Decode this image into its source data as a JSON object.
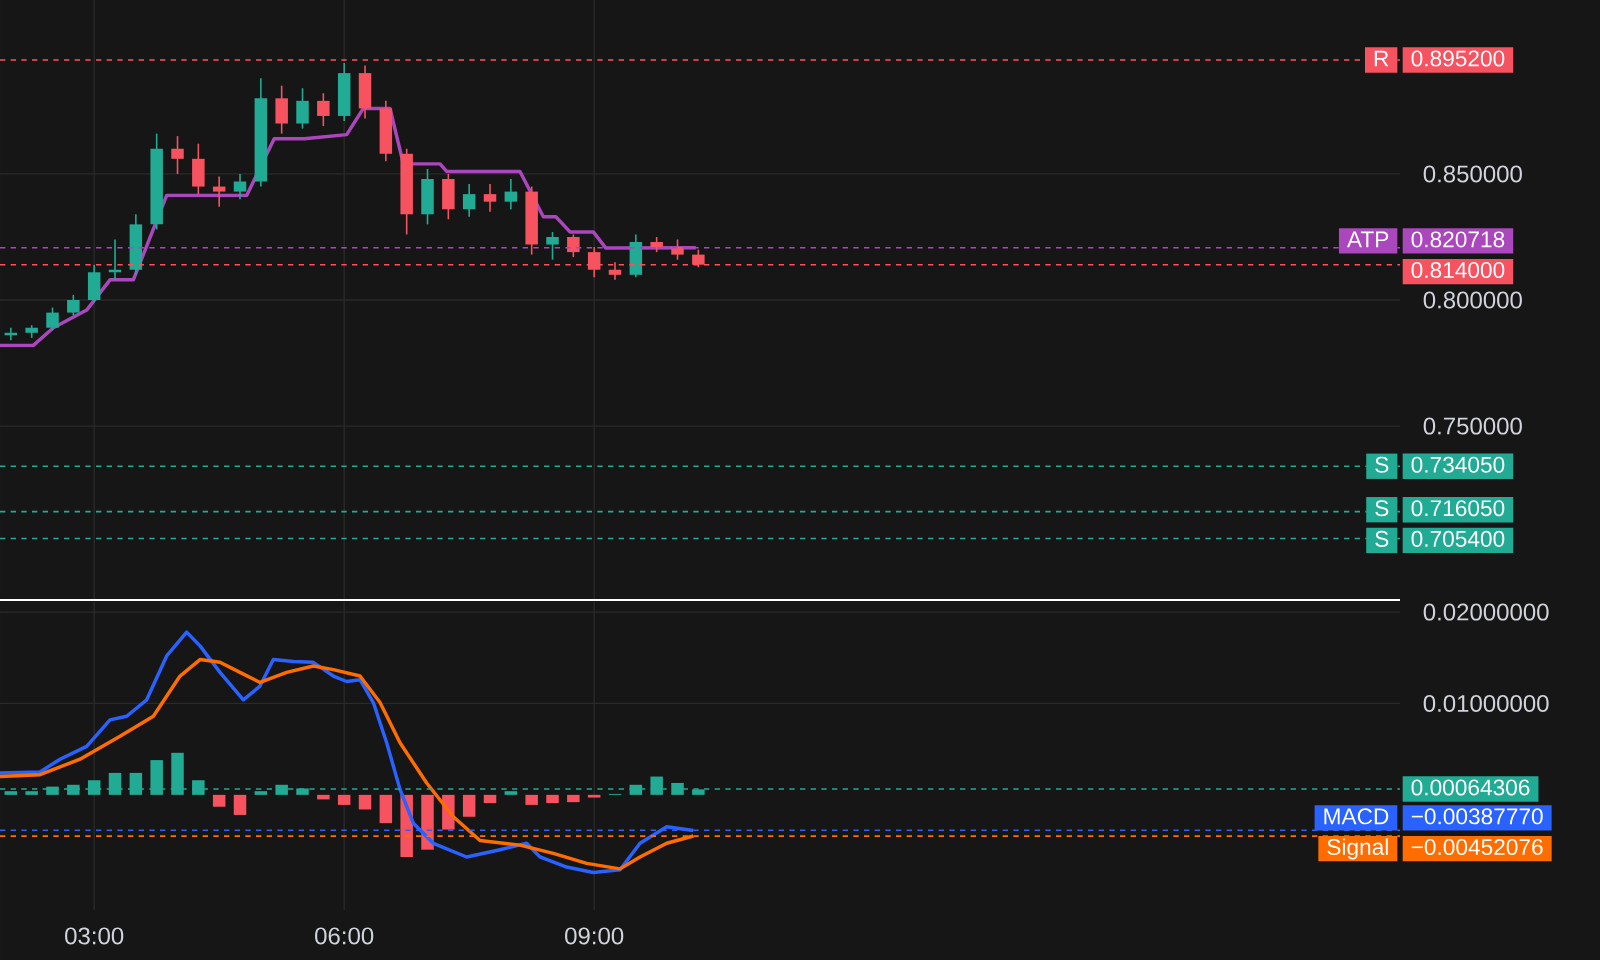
{
  "chart_data": [
    {
      "type": "candlestick",
      "grid": true,
      "tick_labels": "y",
      "x": [
        2.0,
        2.25,
        2.5,
        2.75,
        3.0,
        3.25,
        3.5,
        3.75,
        4.0,
        4.25,
        4.5,
        4.75,
        5.0,
        5.25,
        5.5,
        5.75,
        6.0,
        6.25,
        6.5,
        6.75,
        7.0,
        7.25,
        7.5,
        7.75,
        8.0,
        8.25,
        8.5,
        8.75,
        9.0,
        9.25,
        9.5,
        9.75,
        10.0,
        10.25
      ],
      "ohlc": [
        [
          0.786,
          0.789,
          0.784,
          0.787
        ],
        [
          0.787,
          0.79,
          0.785,
          0.789
        ],
        [
          0.789,
          0.797,
          0.788,
          0.795
        ],
        [
          0.795,
          0.802,
          0.794,
          0.8
        ],
        [
          0.8,
          0.814,
          0.799,
          0.811
        ],
        [
          0.811,
          0.824,
          0.808,
          0.812
        ],
        [
          0.812,
          0.834,
          0.81,
          0.83
        ],
        [
          0.83,
          0.866,
          0.828,
          0.86
        ],
        [
          0.86,
          0.865,
          0.85,
          0.856
        ],
        [
          0.856,
          0.862,
          0.842,
          0.845
        ],
        [
          0.845,
          0.849,
          0.837,
          0.843
        ],
        [
          0.843,
          0.85,
          0.84,
          0.847
        ],
        [
          0.847,
          0.888,
          0.845,
          0.88
        ],
        [
          0.88,
          0.885,
          0.866,
          0.87
        ],
        [
          0.87,
          0.884,
          0.868,
          0.879
        ],
        [
          0.879,
          0.882,
          0.869,
          0.873
        ],
        [
          0.873,
          0.894,
          0.871,
          0.89
        ],
        [
          0.89,
          0.893,
          0.872,
          0.876
        ],
        [
          0.876,
          0.879,
          0.855,
          0.858
        ],
        [
          0.858,
          0.86,
          0.826,
          0.834
        ],
        [
          0.834,
          0.852,
          0.83,
          0.848
        ],
        [
          0.848,
          0.85,
          0.832,
          0.836
        ],
        [
          0.836,
          0.846,
          0.833,
          0.842
        ],
        [
          0.842,
          0.846,
          0.835,
          0.839
        ],
        [
          0.839,
          0.848,
          0.836,
          0.843
        ],
        [
          0.843,
          0.845,
          0.818,
          0.822
        ],
        [
          0.822,
          0.827,
          0.816,
          0.825
        ],
        [
          0.825,
          0.826,
          0.817,
          0.819
        ],
        [
          0.819,
          0.821,
          0.809,
          0.812
        ],
        [
          0.812,
          0.815,
          0.808,
          0.81
        ],
        [
          0.81,
          0.826,
          0.809,
          0.823
        ],
        [
          0.823,
          0.825,
          0.819,
          0.821
        ],
        [
          0.821,
          0.824,
          0.816,
          0.818
        ],
        [
          0.818,
          0.82,
          0.813,
          0.814
        ]
      ],
      "colors": [
        "#22ab94",
        "#22ab94",
        "#22ab94",
        "#22ab94",
        "#22ab94",
        "#22ab94",
        "#22ab94",
        "#22ab94",
        "#f7525f",
        "#f7525f",
        "#f7525f",
        "#22ab94",
        "#22ab94",
        "#f7525f",
        "#22ab94",
        "#f7525f",
        "#22ab94",
        "#f7525f",
        "#f7525f",
        "#f7525f",
        "#22ab94",
        "#f7525f",
        "#22ab94",
        "#f7525f",
        "#22ab94",
        "#f7525f",
        "#22ab94",
        "#f7525f",
        "#f7525f",
        "#f7525f",
        "#22ab94",
        "#f7525f",
        "#f7525f",
        "#f7525f"
      ],
      "series": [
        {
          "type": "line",
          "color": "#ab47bc",
          "x": [
            1.87,
            2.27,
            2.51,
            2.91,
            3.19,
            3.47,
            3.87,
            4.83,
            5.16,
            5.52,
            6.03,
            6.23,
            6.55,
            6.71,
            7.15,
            7.23,
            8.11,
            8.39,
            8.54,
            8.71,
            8.99,
            9.14,
            10.22
          ],
          "values": [
            0.782,
            0.782,
            0.789,
            0.796,
            0.808,
            0.808,
            0.8415,
            0.8415,
            0.864,
            0.864,
            0.8656,
            0.876,
            0.876,
            0.854,
            0.854,
            0.851,
            0.851,
            0.833,
            0.833,
            0.827,
            0.827,
            0.8206,
            0.8207
          ]
        }
      ],
      "xlim": [
        1.87,
        18.67
      ],
      "xticks": [
        {
          "value": 3,
          "label": null
        },
        {
          "value": 6,
          "label": null
        },
        {
          "value": 9,
          "label": null
        }
      ],
      "ylim": [
        0.681,
        0.919
      ],
      "yticks": [
        {
          "value": 0.75,
          "label": "0.750000"
        },
        {
          "value": 0.8,
          "label": "0.800000"
        },
        {
          "value": 0.85,
          "label": "0.850000"
        }
      ],
      "ref_lines": [
        {
          "axis": "y",
          "value": 0.8952,
          "label": "R",
          "color": "#f7525f",
          "line_style": "dashed"
        },
        {
          "axis": "y",
          "value": 0.820718,
          "label": "ATP",
          "color": "#ab47bc",
          "line_style": "dashed"
        },
        {
          "axis": "y",
          "value": 0.814,
          "label": null,
          "color": "#f7525f",
          "line_style": "dashed"
        },
        {
          "axis": "y",
          "value": 0.73405,
          "label": "S",
          "color": "#22ab94",
          "line_style": "dashed"
        },
        {
          "axis": "y",
          "value": 0.71605,
          "label": "S",
          "color": "#22ab94",
          "line_style": "dashed"
        },
        {
          "axis": "y",
          "value": 0.7054,
          "label": "S",
          "color": "#22ab94",
          "line_style": "dashed"
        }
      ],
      "annotations": [
        "0.895200",
        "0.820718",
        "0.814000",
        "0.734050",
        "0.716050",
        "0.705400"
      ]
    },
    {
      "type": "line",
      "grid": true,
      "series": [
        {
          "type": "bar",
          "x": [
            2.0,
            2.25,
            2.5,
            2.75,
            3.0,
            3.25,
            3.5,
            3.75,
            4.0,
            4.25,
            4.5,
            4.75,
            5.0,
            5.25,
            5.5,
            5.75,
            6.0,
            6.25,
            6.5,
            6.75,
            7.0,
            7.25,
            7.5,
            7.75,
            8.0,
            8.25,
            8.5,
            8.75,
            9.0,
            9.25,
            9.5,
            9.75,
            10.0,
            10.25
          ],
          "values": [
            0.0004,
            0.0004,
            0.0009,
            0.0011,
            0.0016,
            0.0024,
            0.0024,
            0.0038,
            0.0046,
            0.0016,
            -0.0013,
            -0.0022,
            0.0004,
            0.0011,
            0.0007,
            -0.0005,
            -0.0011,
            -0.0016,
            -0.0031,
            -0.0068,
            -0.006,
            -0.0038,
            -0.0024,
            -0.0009,
            0.0004,
            -0.0011,
            -0.0009,
            -0.0008,
            -0.0003,
            0.0001,
            0.0011,
            0.002,
            0.0013,
            0.0006
          ],
          "colors": [
            "#22ab94",
            "#22ab94",
            "#22ab94",
            "#22ab94",
            "#22ab94",
            "#22ab94",
            "#22ab94",
            "#22ab94",
            "#22ab94",
            "#22ab94",
            "#f7525f",
            "#f7525f",
            "#22ab94",
            "#22ab94",
            "#22ab94",
            "#f7525f",
            "#f7525f",
            "#f7525f",
            "#f7525f",
            "#f7525f",
            "#f7525f",
            "#f7525f",
            "#f7525f",
            "#f7525f",
            "#22ab94",
            "#f7525f",
            "#f7525f",
            "#f7525f",
            "#f7525f",
            "#22ab94",
            "#22ab94",
            "#22ab94",
            "#22ab94",
            "#22ab94"
          ]
        },
        {
          "type": "line",
          "color": "#2962ff",
          "x": [
            1.87,
            2.35,
            2.59,
            2.91,
            3.19,
            3.39,
            3.63,
            3.87,
            4.11,
            4.27,
            4.51,
            4.79,
            4.99,
            5.15,
            5.39,
            5.63,
            5.87,
            6.03,
            6.19,
            6.35,
            6.51,
            6.67,
            6.83,
            7.07,
            7.47,
            7.87,
            8.19,
            8.35,
            8.67,
            8.99,
            9.31,
            9.55,
            9.87,
            10.19
          ],
          "values": [
            0.0024,
            0.0025,
            0.0039,
            0.0053,
            0.0082,
            0.0086,
            0.0104,
            0.0152,
            0.0178,
            0.0163,
            0.0134,
            0.0104,
            0.0119,
            0.0148,
            0.0146,
            0.0145,
            0.013,
            0.0124,
            0.0126,
            0.0101,
            0.0057,
            0.0006,
            -0.0031,
            -0.0053,
            -0.0068,
            -0.006,
            -0.0053,
            -0.0068,
            -0.0079,
            -0.0085,
            -0.0082,
            -0.0053,
            -0.0035,
            -0.0039
          ]
        },
        {
          "type": "line",
          "color": "#ff6d00",
          "x": [
            1.87,
            2.35,
            2.83,
            3.31,
            3.71,
            4.03,
            4.27,
            4.51,
            4.75,
            4.99,
            5.31,
            5.63,
            5.87,
            6.19,
            6.43,
            6.67,
            6.99,
            7.31,
            7.63,
            8.11,
            8.51,
            8.91,
            9.31,
            9.55,
            9.87,
            10.19
          ],
          "values": [
            0.002,
            0.0022,
            0.0039,
            0.0064,
            0.0086,
            0.013,
            0.0148,
            0.0145,
            0.0134,
            0.0123,
            0.0134,
            0.0141,
            0.0137,
            0.013,
            0.0101,
            0.0057,
            0.0013,
            -0.0024,
            -0.005,
            -0.0055,
            -0.0064,
            -0.0075,
            -0.0081,
            -0.0068,
            -0.0053,
            -0.0045
          ]
        }
      ],
      "xlim": [
        1.87,
        18.67
      ],
      "xticks": [
        {
          "value": 3,
          "label": "03:00"
        },
        {
          "value": 6,
          "label": "06:00"
        },
        {
          "value": 9,
          "label": "09:00"
        }
      ],
      "ylim": [
        -0.0126,
        0.0211
      ],
      "yticks": [
        {
          "value": 0.02,
          "label": "0.02000000"
        },
        {
          "value": 0.01,
          "label": "0.01000000"
        }
      ],
      "ref_lines": [
        {
          "axis": "y",
          "value": 0.00064306,
          "label": null,
          "color": "#22ab94",
          "line_style": "dashed"
        },
        {
          "axis": "y",
          "value": -0.0038777,
          "label": "MACD",
          "color": "#2962ff",
          "line_style": "dashed"
        },
        {
          "axis": "y",
          "value": -0.00452076,
          "label": "Signal",
          "color": "#ff6d00",
          "line_style": "dashed"
        }
      ],
      "annotations": [
        "0.00064306",
        "−0.00387770",
        "−0.00452076"
      ]
    }
  ]
}
